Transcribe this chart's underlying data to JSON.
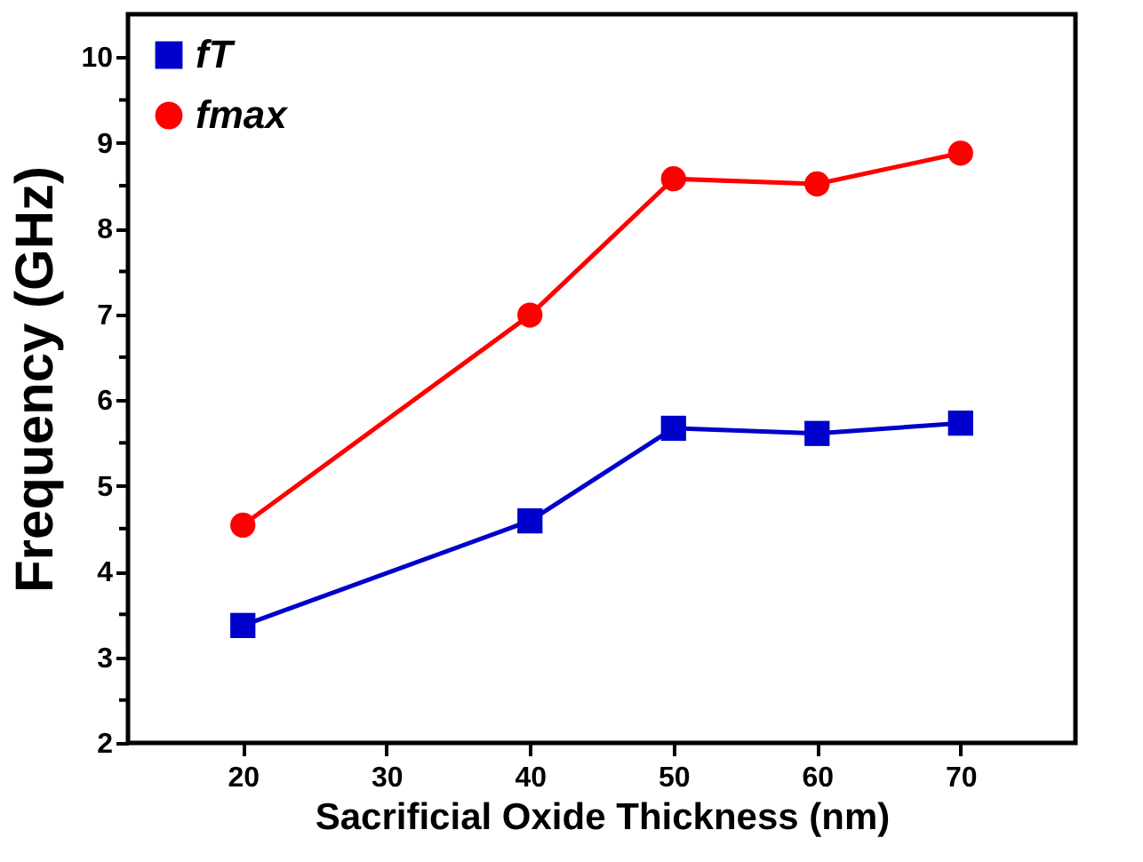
{
  "chart_data": {
    "type": "line",
    "xlabel": "Sacrificial Oxide Thickness (nm)",
    "ylabel": "Frequency (GHz)",
    "x": [
      20,
      40,
      50,
      60,
      70
    ],
    "series": [
      {
        "name": "fT",
        "color": "#0000cc",
        "marker": "square",
        "values": [
          3.37,
          4.59,
          5.67,
          5.61,
          5.73
        ]
      },
      {
        "name": "fmax",
        "color": "#ff0000",
        "marker": "circle",
        "values": [
          4.54,
          6.99,
          8.58,
          8.52,
          8.88
        ]
      }
    ],
    "xlim": [
      12,
      78
    ],
    "xticks": [
      20,
      30,
      40,
      50,
      60,
      70
    ],
    "ylim": [
      2,
      10.5
    ],
    "yticks": [
      2,
      {
        "value": 2.5,
        "label": null
      },
      3,
      {
        "value": 3.5,
        "label": null
      },
      4,
      {
        "value": 4.5,
        "label": null
      },
      5,
      {
        "value": 5.5,
        "label": null
      },
      6,
      {
        "value": 6.5,
        "label": null
      },
      7,
      {
        "value": 7.5,
        "label": null
      },
      8,
      {
        "value": 8.5,
        "label": null
      },
      9,
      {
        "value": 9.5,
        "label": null
      },
      10
    ],
    "grid": false,
    "legend": "top left",
    "line_style": "solid"
  }
}
